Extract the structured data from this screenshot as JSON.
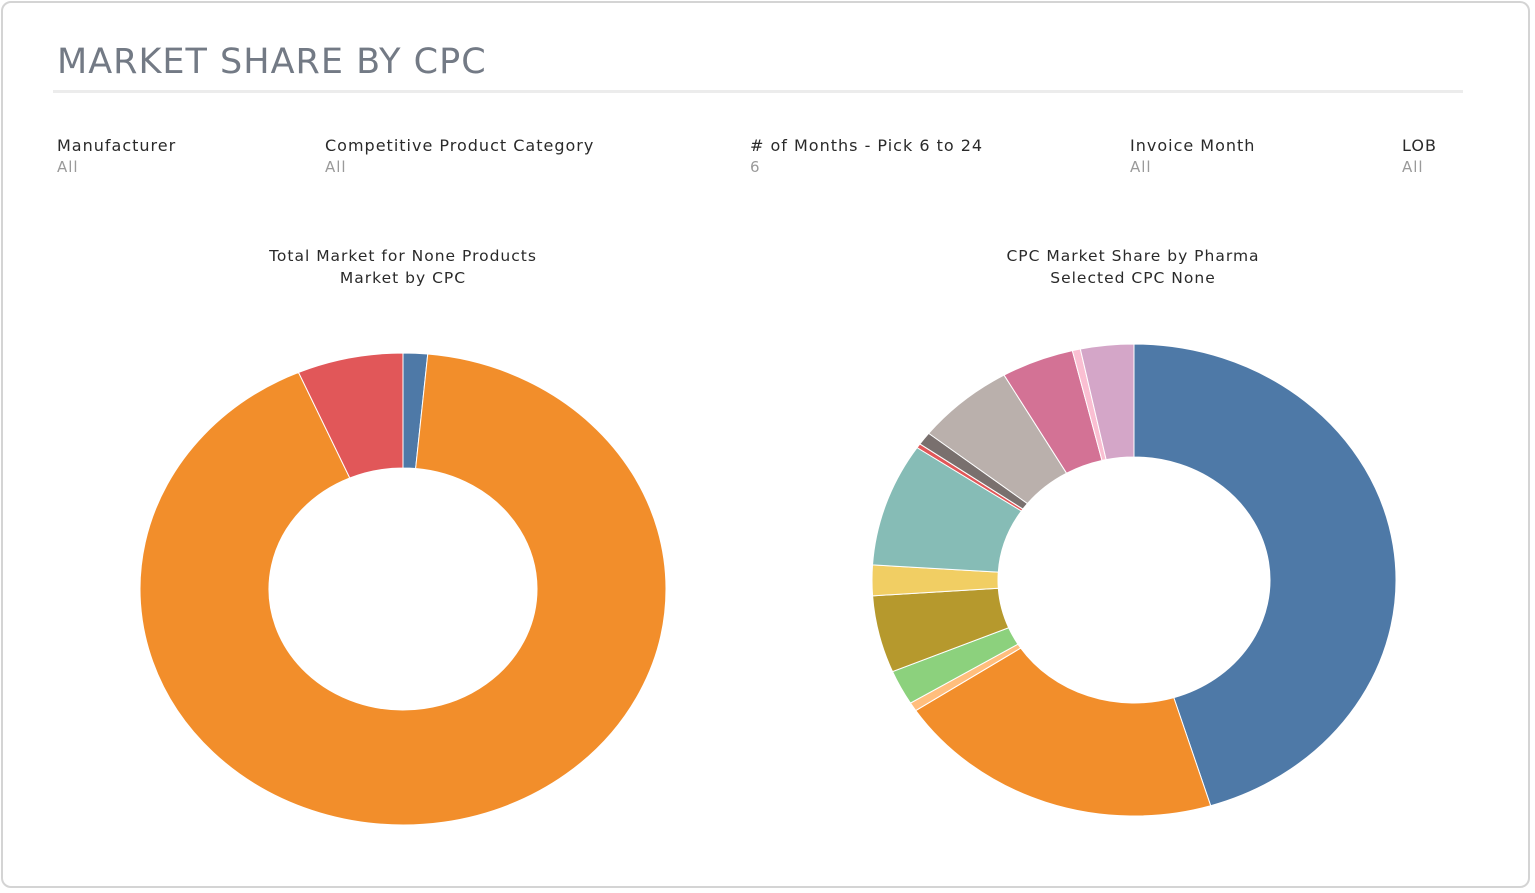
{
  "page": {
    "title": "MARKET SHARE BY CPC"
  },
  "filters": [
    {
      "label": "Manufacturer",
      "value": "All"
    },
    {
      "label": "Competitive Product Category",
      "value": "All"
    },
    {
      "label": "# of Months - Pick 6 to 24",
      "value": "6"
    },
    {
      "label": "Invoice Month",
      "value": "All"
    },
    {
      "label": "LOB",
      "value": "All"
    }
  ],
  "chart_data": [
    {
      "type": "donut",
      "title": "Total Market for None Products",
      "subtitle": "Market by CPC",
      "slices": [
        {
          "name": "Blue segment",
          "value": 1.5,
          "color": "#4e79a7"
        },
        {
          "name": "Orange segment",
          "value": 92.0,
          "color": "#f28e2b"
        },
        {
          "name": "Red segment",
          "value": 6.5,
          "color": "#e15759"
        }
      ]
    },
    {
      "type": "donut",
      "title": "CPC Market Share by Pharma",
      "subtitle": "Selected CPC None",
      "slices": [
        {
          "name": "Blue segment",
          "value": 45.5,
          "color": "#4e79a7"
        },
        {
          "name": "Orange segment",
          "value": 20.5,
          "color": "#f28e2b"
        },
        {
          "name": "Light orange segment",
          "value": 0.6,
          "color": "#ffbe7d"
        },
        {
          "name": "Green segment",
          "value": 2.4,
          "color": "#8cd17d"
        },
        {
          "name": "Olive segment",
          "value": 5.3,
          "color": "#b6992d"
        },
        {
          "name": "Yellow segment",
          "value": 2.1,
          "color": "#f1ce63"
        },
        {
          "name": "Teal segment",
          "value": 8.5,
          "color": "#86bcb6"
        },
        {
          "name": "Red segment",
          "value": 0.3,
          "color": "#e15759"
        },
        {
          "name": "Dark gray segment",
          "value": 0.9,
          "color": "#79706e"
        },
        {
          "name": "Light gray segment",
          "value": 6.1,
          "color": "#bab0ac"
        },
        {
          "name": "Pink segment",
          "value": 4.5,
          "color": "#d37295"
        },
        {
          "name": "Light pink segment",
          "value": 0.5,
          "color": "#fabfd2"
        },
        {
          "name": "Mauve segment",
          "value": 3.3,
          "color": "#d4a6c8"
        }
      ]
    }
  ]
}
